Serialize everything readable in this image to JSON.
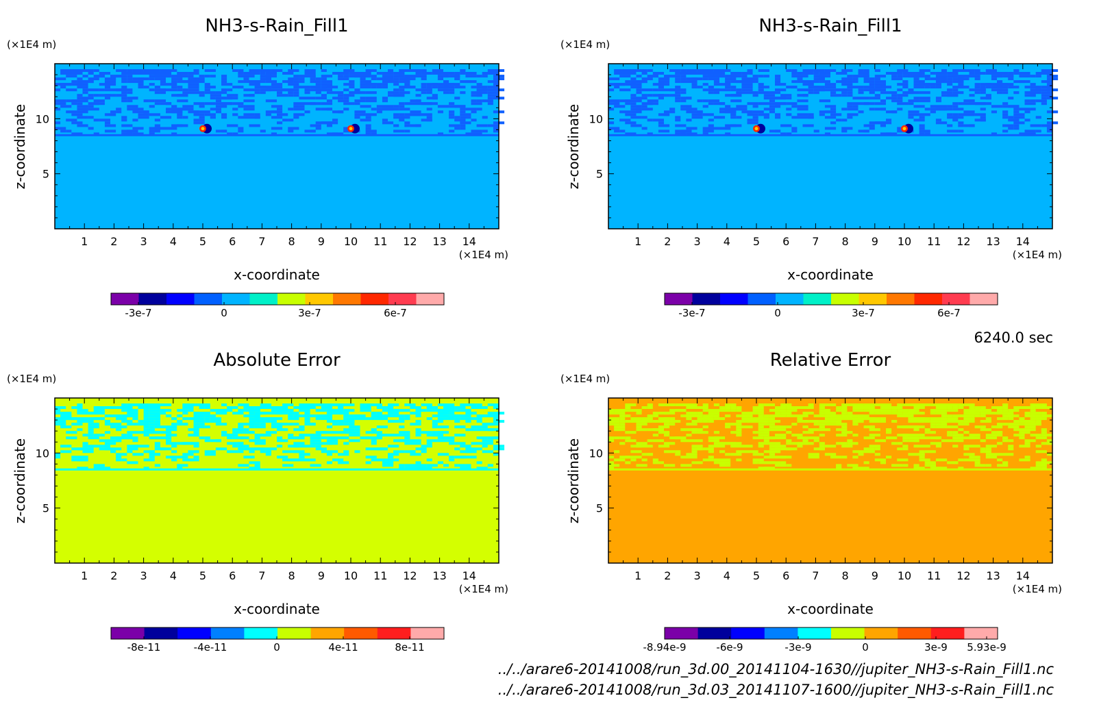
{
  "time_label": "6240.0 sec",
  "file_paths": [
    "../../arare6-20141008/run_3d.00_20141104-1630//jupiter_NH3-s-Rain_Fill1.nc",
    "../../arare6-20141008/run_3d.03_20141107-1600//jupiter_NH3-s-Rain_Fill1.nc"
  ],
  "chart_data": [
    {
      "type": "heatmap",
      "title": "NH3-s-Rain_Fill1",
      "xlabel": "x-coordinate",
      "ylabel": "z-coordinate",
      "x_unit": "(×1E4 m)",
      "z_unit": "(×1E4 m)",
      "xlim": [
        0,
        15
      ],
      "zlim": [
        0,
        15
      ],
      "x_ticks": [
        "1",
        "2",
        "3",
        "4",
        "5",
        "6",
        "7",
        "8",
        "9",
        "10",
        "11",
        "12",
        "13",
        "14"
      ],
      "z_ticks": [
        "5",
        "10"
      ],
      "background_color": "#00b4ff",
      "pattern_color": "#1060ff",
      "colorbar": {
        "colors": [
          "#7b00a8",
          "#00009c",
          "#0000ff",
          "#0060ff",
          "#00b4ff",
          "#00f0c8",
          "#c8ff00",
          "#ffc800",
          "#ff7800",
          "#ff2800",
          "#ff3c50",
          "#ffaaaa"
        ],
        "tick_labels": [
          "-3e-7",
          "0",
          "3e-7",
          "6e-7"
        ]
      }
    },
    {
      "type": "heatmap",
      "title": "NH3-s-Rain_Fill1",
      "xlabel": "x-coordinate",
      "ylabel": "z-coordinate",
      "x_unit": "(×1E4 m)",
      "z_unit": "(×1E4 m)",
      "xlim": [
        0,
        15
      ],
      "zlim": [
        0,
        15
      ],
      "x_ticks": [
        "1",
        "2",
        "3",
        "4",
        "5",
        "6",
        "7",
        "8",
        "9",
        "10",
        "11",
        "12",
        "13",
        "14"
      ],
      "z_ticks": [
        "5",
        "10"
      ],
      "background_color": "#00b4ff",
      "pattern_color": "#1060ff",
      "colorbar": {
        "colors": [
          "#7b00a8",
          "#00009c",
          "#0000ff",
          "#0060ff",
          "#00b4ff",
          "#00f0c8",
          "#c8ff00",
          "#ffc800",
          "#ff7800",
          "#ff2800",
          "#ff3c50",
          "#ffaaaa"
        ],
        "tick_labels": [
          "-3e-7",
          "0",
          "3e-7",
          "6e-7"
        ]
      }
    },
    {
      "type": "heatmap",
      "title": "Absolute Error",
      "xlabel": "x-coordinate",
      "ylabel": "z-coordinate",
      "x_unit": "(×1E4 m)",
      "z_unit": "(×1E4 m)",
      "xlim": [
        0,
        15
      ],
      "zlim": [
        0,
        15
      ],
      "x_ticks": [
        "1",
        "2",
        "3",
        "4",
        "5",
        "6",
        "7",
        "8",
        "9",
        "10",
        "11",
        "12",
        "13",
        "14"
      ],
      "z_ticks": [
        "5",
        "10"
      ],
      "background_color": "#d4ff00",
      "pattern_color": "#00ffff",
      "colorbar": {
        "colors": [
          "#7b00a8",
          "#00009c",
          "#0000ff",
          "#0080ff",
          "#00ffff",
          "#c8ff00",
          "#ffa500",
          "#ff5a00",
          "#ff1e1e",
          "#ffaaaa"
        ],
        "tick_labels": [
          "-8e-11",
          "-4e-11",
          "0",
          "4e-11",
          "8e-11"
        ]
      }
    },
    {
      "type": "heatmap",
      "title": "Relative Error",
      "xlabel": "x-coordinate",
      "ylabel": "z-coordinate",
      "x_unit": "(×1E4 m)",
      "z_unit": "(×1E4 m)",
      "xlim": [
        0,
        15
      ],
      "zlim": [
        0,
        15
      ],
      "x_ticks": [
        "1",
        "2",
        "3",
        "4",
        "5",
        "6",
        "7",
        "8",
        "9",
        "10",
        "11",
        "12",
        "13",
        "14"
      ],
      "z_ticks": [
        "5",
        "10"
      ],
      "background_color": "#ffa500",
      "pattern_color": "#c8ff00",
      "colorbar": {
        "colors": [
          "#7b00a8",
          "#00009c",
          "#0000ff",
          "#0080ff",
          "#00ffff",
          "#c8ff00",
          "#ffa500",
          "#ff5a00",
          "#ff1e1e",
          "#ffaaaa"
        ],
        "tick_labels": [
          "-8.94e-9",
          "-6e-9",
          "-3e-9",
          "0",
          "3e-9",
          "5.93e-9"
        ]
      }
    }
  ]
}
